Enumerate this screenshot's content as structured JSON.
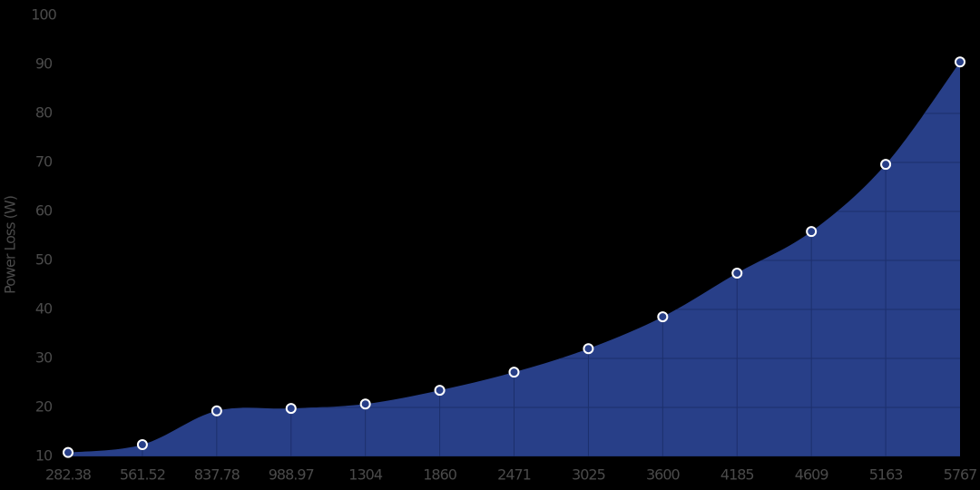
{
  "chart_data": {
    "type": "area",
    "y_label": "Power Loss (W)",
    "categories": [
      "282.38",
      "561.52",
      "837.78",
      "988.97",
      "1304",
      "1860",
      "2471",
      "3025",
      "3600",
      "4185",
      "4609",
      "5163",
      "5767"
    ],
    "series": [
      {
        "name": "Power Loss (W)",
        "color": "#283f88",
        "values": [
          10.8,
          12.4,
          19.3,
          19.8,
          20.7,
          23.5,
          27.2,
          32.0,
          38.5,
          47.4,
          55.9,
          69.6,
          90.5
        ]
      }
    ],
    "ylim": [
      10,
      100
    ],
    "yticks": [
      10,
      20,
      30,
      40,
      50,
      60,
      70,
      80,
      90,
      100
    ],
    "grid": true
  }
}
